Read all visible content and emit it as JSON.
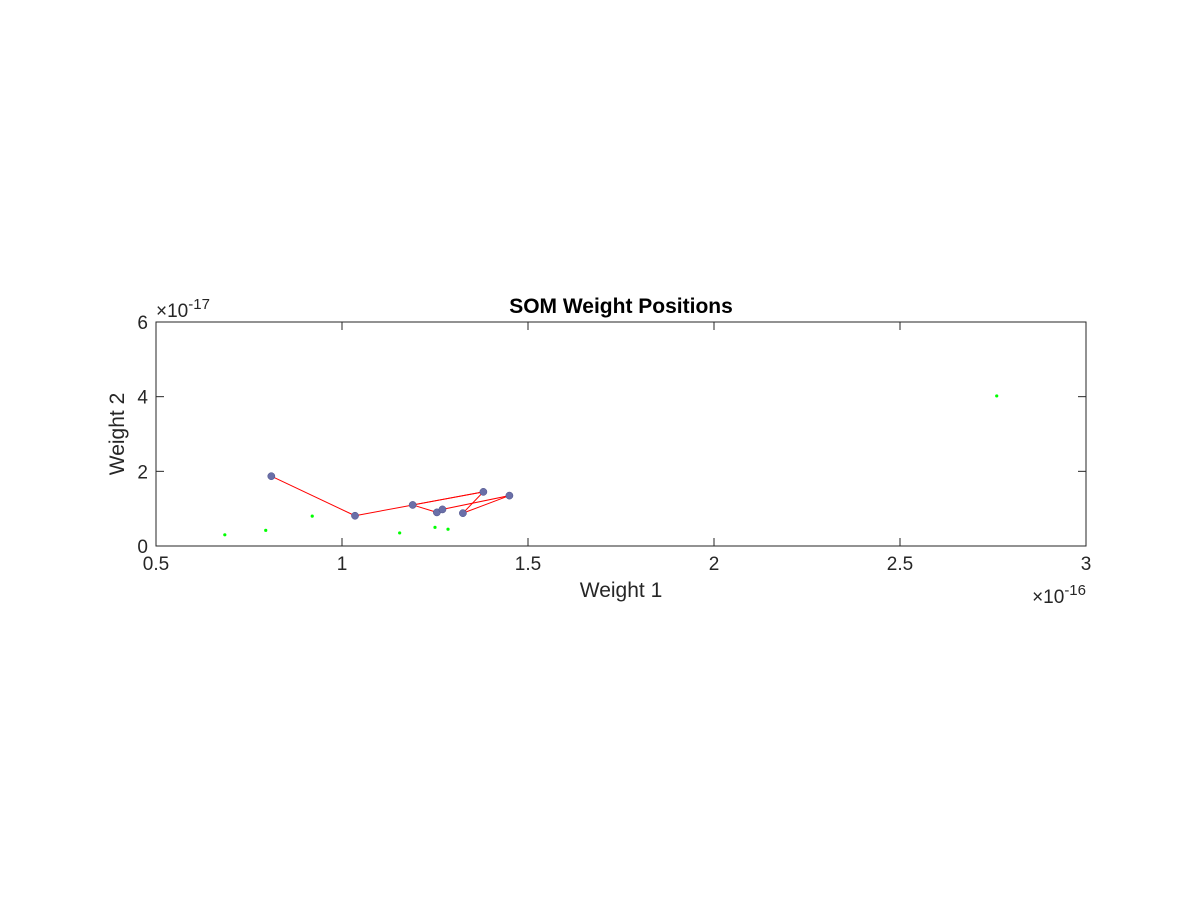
{
  "chart_data": {
    "type": "scatter",
    "title": "SOM Weight Positions",
    "xlabel": "Weight 1",
    "ylabel": "Weight 2",
    "xlim": [
      0.5,
      3
    ],
    "ylim": [
      0,
      6
    ],
    "x_exponent_label": {
      "base": "×10",
      "exp": "-16"
    },
    "y_exponent_label": {
      "base": "×10",
      "exp": "-17"
    },
    "x_ticks": [
      0.5,
      1,
      1.5,
      2,
      2.5,
      3
    ],
    "x_tick_labels": [
      "0.5",
      "1",
      "1.5",
      "2",
      "2.5",
      "3"
    ],
    "y_ticks": [
      0,
      2,
      4,
      6
    ],
    "y_tick_labels": [
      "0",
      "2",
      "4",
      "6"
    ],
    "grid": false,
    "box": true,
    "series": [
      {
        "marker": "dot",
        "color": "#00ff00",
        "points": [
          [
            0.685,
            0.3
          ],
          [
            0.795,
            0.42
          ],
          [
            0.92,
            0.8
          ],
          [
            1.155,
            0.35
          ],
          [
            1.25,
            0.5
          ],
          [
            1.285,
            0.45
          ],
          [
            2.76,
            4.02
          ]
        ]
      },
      {
        "marker": "circle",
        "color": "#6a6fa8",
        "line_color": "#ff0000",
        "points": [
          [
            0.81,
            1.87
          ],
          [
            1.035,
            0.81
          ],
          [
            1.19,
            1.1
          ],
          [
            1.255,
            0.9
          ],
          [
            1.27,
            0.98
          ],
          [
            1.325,
            0.88
          ],
          [
            1.38,
            1.45
          ],
          [
            1.45,
            1.35
          ]
        ],
        "edges": [
          [
            0,
            1
          ],
          [
            1,
            6
          ],
          [
            6,
            2
          ],
          [
            2,
            3
          ],
          [
            3,
            4
          ],
          [
            4,
            7
          ],
          [
            7,
            5
          ],
          [
            5,
            6
          ]
        ]
      }
    ]
  }
}
